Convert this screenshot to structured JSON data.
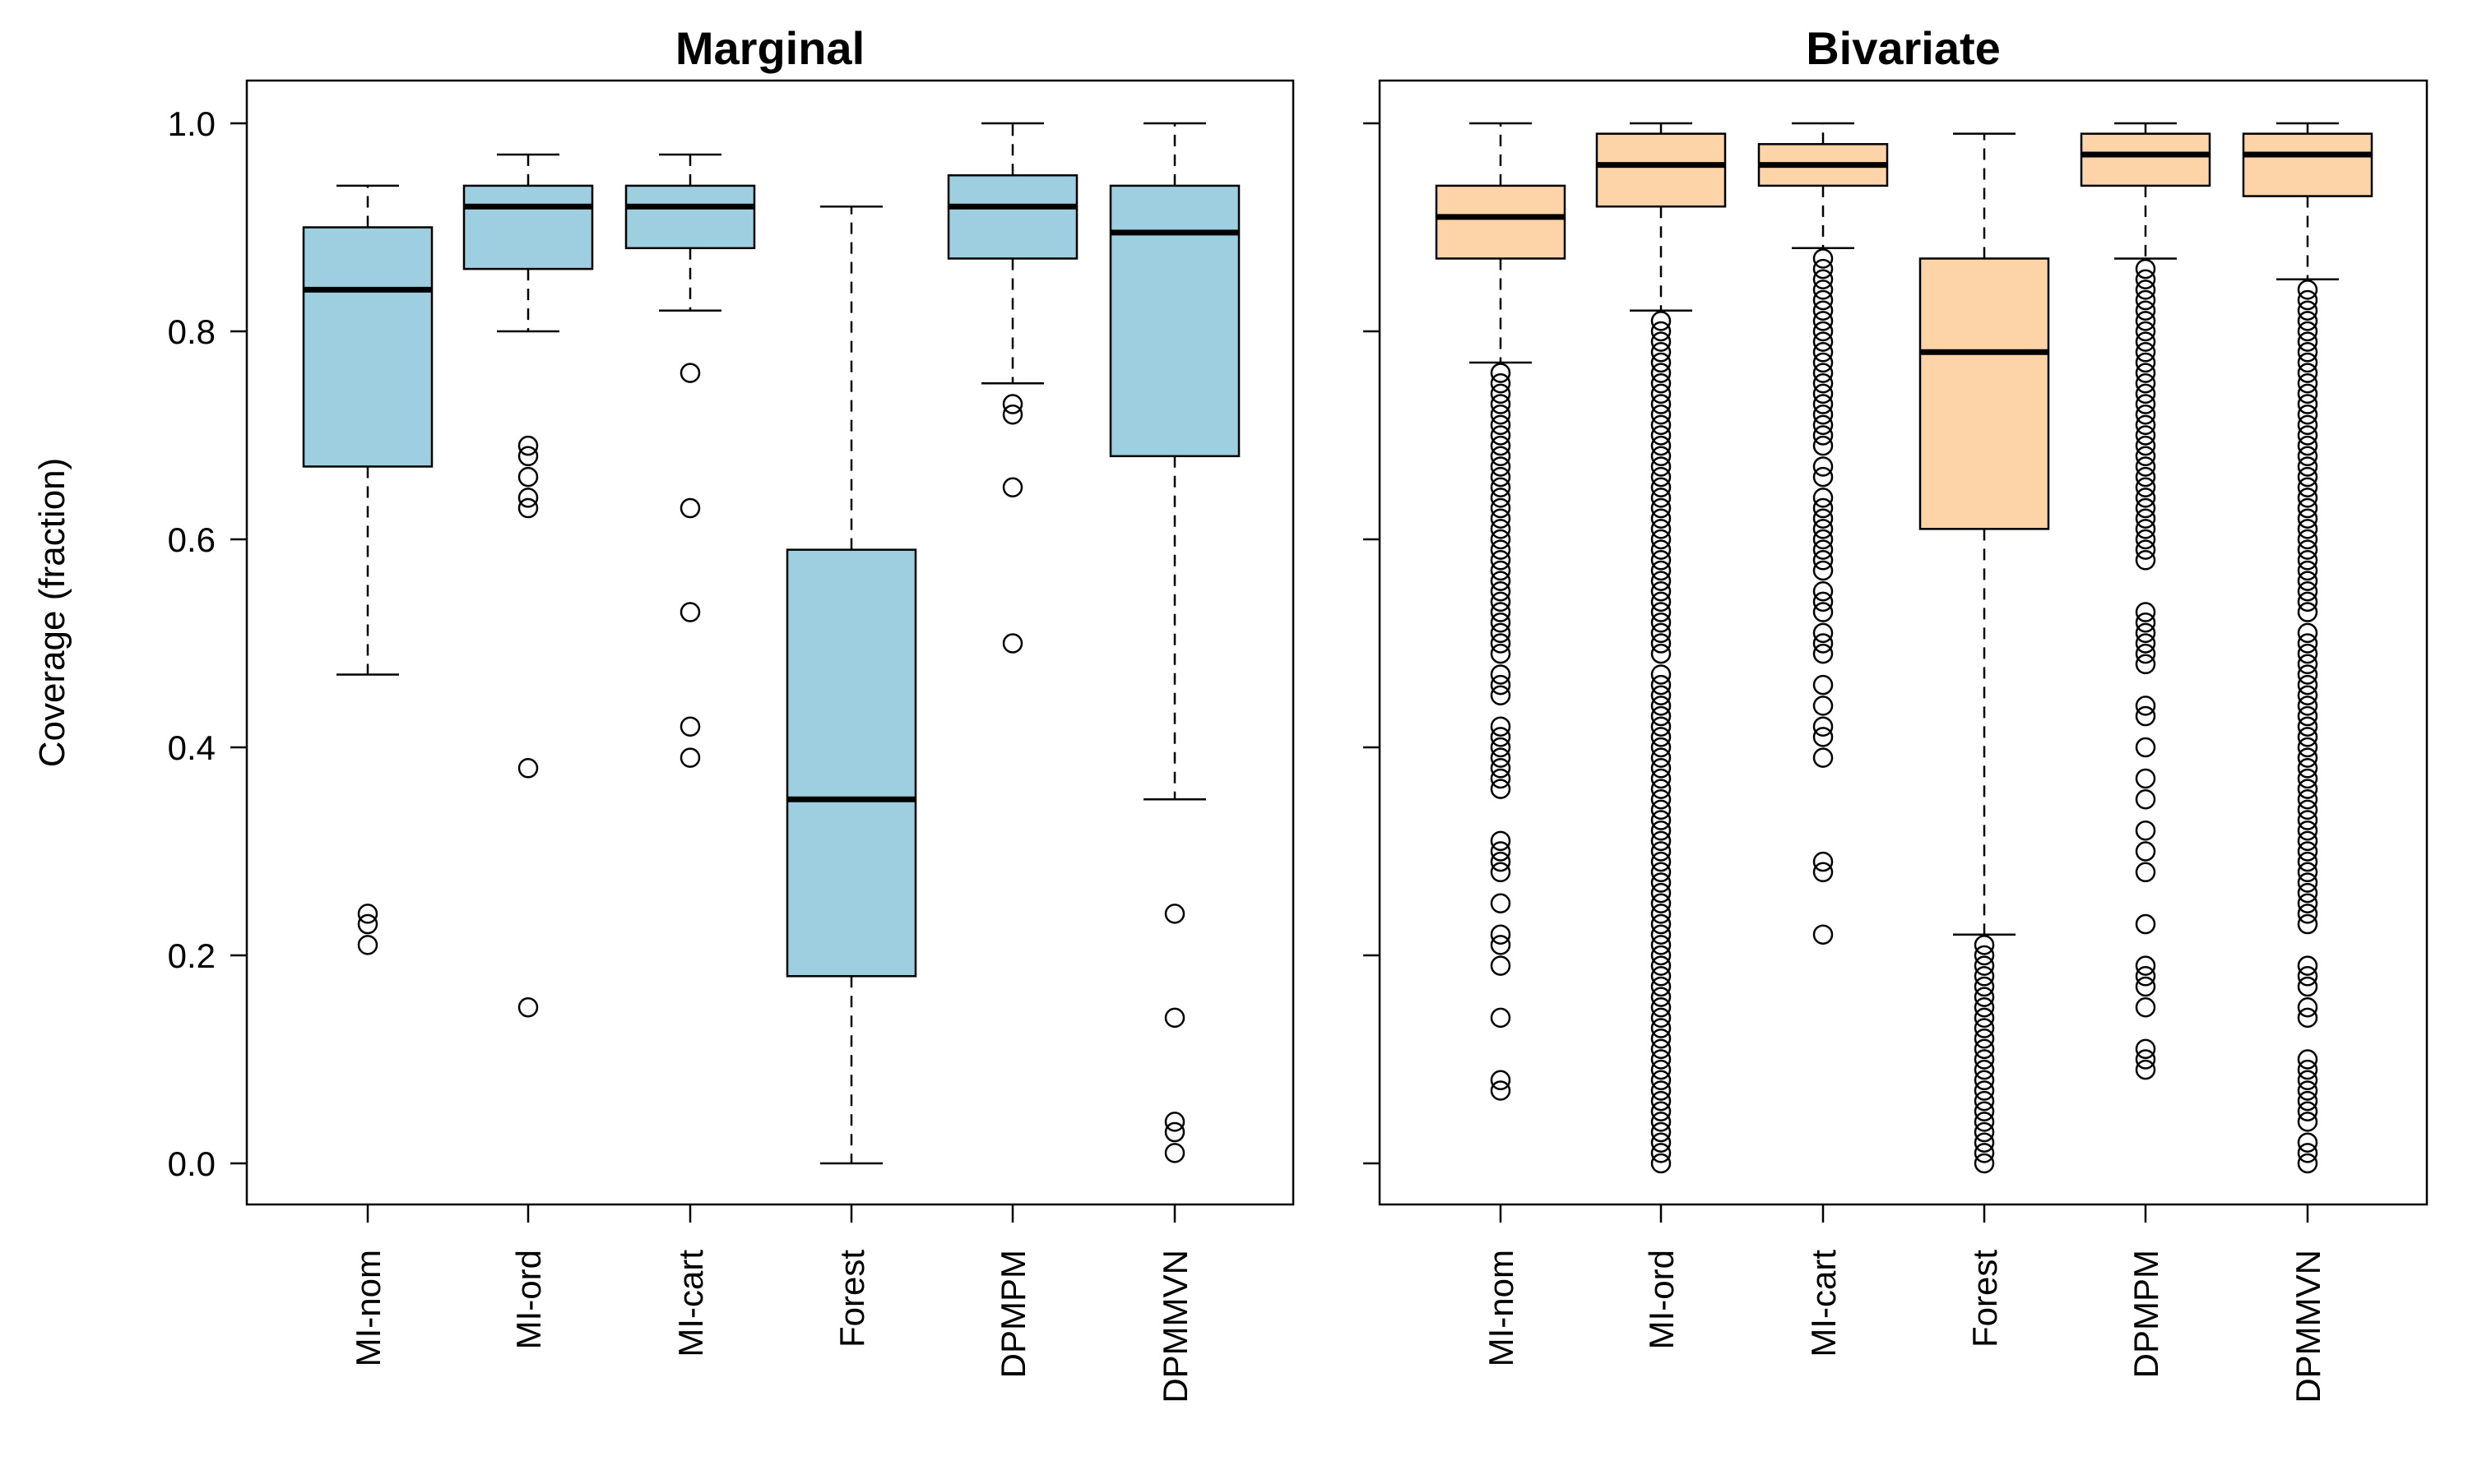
{
  "chart_data": {
    "type": "box",
    "ylabel": "Coverage (fraction)",
    "ylim": [
      0.0,
      1.0
    ],
    "yticks": [
      "0.0",
      "0.2",
      "0.4",
      "0.6",
      "0.8",
      "1.0"
    ],
    "ytick_values": [
      0.0,
      0.2,
      0.4,
      0.6,
      0.8,
      1.0
    ],
    "grid": false,
    "categories": [
      "MI-nom",
      "MI-ord",
      "MI-cart",
      "Forest",
      "DPMPM",
      "DPMMVN"
    ],
    "panels": [
      {
        "title": "Marginal",
        "fill": "#9ecfe0",
        "boxes": [
          {
            "name": "MI-nom",
            "whisker_low": 0.47,
            "q1": 0.67,
            "median": 0.84,
            "q3": 0.9,
            "whisker_high": 0.94,
            "outliers": [
              0.24,
              0.23,
              0.21
            ]
          },
          {
            "name": "MI-ord",
            "whisker_low": 0.8,
            "q1": 0.86,
            "median": 0.92,
            "q3": 0.94,
            "whisker_high": 0.97,
            "outliers": [
              0.69,
              0.68,
              0.66,
              0.64,
              0.63,
              0.38,
              0.15
            ]
          },
          {
            "name": "MI-cart",
            "whisker_low": 0.82,
            "q1": 0.88,
            "median": 0.92,
            "q3": 0.94,
            "whisker_high": 0.97,
            "outliers": [
              0.76,
              0.63,
              0.53,
              0.42,
              0.39
            ]
          },
          {
            "name": "Forest",
            "whisker_low": 0.0,
            "q1": 0.18,
            "median": 0.35,
            "q3": 0.59,
            "whisker_high": 0.92,
            "outliers": []
          },
          {
            "name": "DPMPM",
            "whisker_low": 0.75,
            "q1": 0.87,
            "median": 0.92,
            "q3": 0.95,
            "whisker_high": 1.0,
            "outliers": [
              0.73,
              0.72,
              0.65,
              0.5
            ]
          },
          {
            "name": "DPMMVN",
            "whisker_low": 0.35,
            "q1": 0.68,
            "median": 0.895,
            "q3": 0.94,
            "whisker_high": 1.0,
            "outliers": [
              0.24,
              0.14,
              0.04,
              0.03,
              0.01
            ]
          }
        ]
      },
      {
        "title": "Bivariate",
        "fill": "#fdd3a8",
        "boxes": [
          {
            "name": "MI-nom",
            "whisker_low": 0.77,
            "q1": 0.87,
            "median": 0.91,
            "q3": 0.94,
            "whisker_high": 1.0,
            "outliers": [
              0.76,
              0.75,
              0.74,
              0.73,
              0.72,
              0.71,
              0.7,
              0.69,
              0.68,
              0.67,
              0.66,
              0.65,
              0.64,
              0.63,
              0.62,
              0.61,
              0.6,
              0.59,
              0.58,
              0.57,
              0.56,
              0.55,
              0.54,
              0.53,
              0.52,
              0.51,
              0.5,
              0.49,
              0.47,
              0.46,
              0.45,
              0.42,
              0.41,
              0.4,
              0.39,
              0.38,
              0.37,
              0.36,
              0.31,
              0.3,
              0.29,
              0.28,
              0.25,
              0.22,
              0.21,
              0.19,
              0.14,
              0.08,
              0.07
            ]
          },
          {
            "name": "MI-ord",
            "whisker_low": 0.82,
            "q1": 0.92,
            "median": 0.96,
            "q3": 0.99,
            "whisker_high": 1.0,
            "outliers": [
              0.81,
              0.8,
              0.79,
              0.78,
              0.77,
              0.76,
              0.75,
              0.74,
              0.73,
              0.72,
              0.71,
              0.7,
              0.69,
              0.68,
              0.67,
              0.66,
              0.65,
              0.64,
              0.63,
              0.62,
              0.61,
              0.6,
              0.59,
              0.58,
              0.57,
              0.56,
              0.55,
              0.54,
              0.53,
              0.52,
              0.51,
              0.5,
              0.49,
              0.47,
              0.46,
              0.45,
              0.44,
              0.43,
              0.42,
              0.41,
              0.4,
              0.39,
              0.38,
              0.37,
              0.36,
              0.35,
              0.34,
              0.33,
              0.32,
              0.31,
              0.3,
              0.29,
              0.28,
              0.27,
              0.26,
              0.25,
              0.24,
              0.23,
              0.22,
              0.21,
              0.2,
              0.19,
              0.18,
              0.17,
              0.16,
              0.15,
              0.14,
              0.13,
              0.12,
              0.11,
              0.1,
              0.09,
              0.08,
              0.07,
              0.06,
              0.05,
              0.04,
              0.03,
              0.02,
              0.01,
              0.0
            ]
          },
          {
            "name": "MI-cart",
            "whisker_low": 0.88,
            "q1": 0.94,
            "median": 0.96,
            "q3": 0.98,
            "whisker_high": 1.0,
            "outliers": [
              0.87,
              0.86,
              0.85,
              0.84,
              0.83,
              0.82,
              0.81,
              0.8,
              0.79,
              0.78,
              0.77,
              0.76,
              0.75,
              0.74,
              0.73,
              0.72,
              0.71,
              0.7,
              0.69,
              0.67,
              0.66,
              0.64,
              0.63,
              0.62,
              0.61,
              0.6,
              0.59,
              0.58,
              0.57,
              0.55,
              0.54,
              0.53,
              0.51,
              0.5,
              0.49,
              0.46,
              0.44,
              0.42,
              0.41,
              0.39,
              0.29,
              0.28,
              0.22
            ]
          },
          {
            "name": "Forest",
            "whisker_low": 0.22,
            "q1": 0.61,
            "median": 0.78,
            "q3": 0.87,
            "whisker_high": 0.99,
            "outliers": [
              0.21,
              0.2,
              0.19,
              0.18,
              0.17,
              0.16,
              0.15,
              0.14,
              0.13,
              0.12,
              0.11,
              0.1,
              0.09,
              0.08,
              0.07,
              0.06,
              0.05,
              0.04,
              0.03,
              0.02,
              0.01,
              0.0
            ]
          },
          {
            "name": "DPMPM",
            "whisker_low": 0.87,
            "q1": 0.94,
            "median": 0.97,
            "q3": 0.99,
            "whisker_high": 1.0,
            "outliers": [
              0.86,
              0.85,
              0.84,
              0.83,
              0.82,
              0.81,
              0.8,
              0.79,
              0.78,
              0.77,
              0.76,
              0.75,
              0.74,
              0.73,
              0.72,
              0.71,
              0.7,
              0.69,
              0.68,
              0.67,
              0.66,
              0.65,
              0.64,
              0.63,
              0.62,
              0.61,
              0.6,
              0.59,
              0.58,
              0.53,
              0.52,
              0.51,
              0.5,
              0.49,
              0.48,
              0.44,
              0.43,
              0.4,
              0.37,
              0.35,
              0.32,
              0.3,
              0.28,
              0.23,
              0.19,
              0.18,
              0.17,
              0.15,
              0.11,
              0.1,
              0.09
            ]
          },
          {
            "name": "DPMMVN",
            "whisker_low": 0.85,
            "q1": 0.93,
            "median": 0.97,
            "q3": 0.99,
            "whisker_high": 1.0,
            "outliers": [
              0.84,
              0.83,
              0.82,
              0.81,
              0.8,
              0.79,
              0.78,
              0.77,
              0.76,
              0.75,
              0.74,
              0.73,
              0.72,
              0.71,
              0.7,
              0.69,
              0.68,
              0.67,
              0.66,
              0.65,
              0.64,
              0.63,
              0.62,
              0.61,
              0.6,
              0.59,
              0.58,
              0.57,
              0.56,
              0.55,
              0.54,
              0.53,
              0.51,
              0.5,
              0.49,
              0.48,
              0.47,
              0.46,
              0.45,
              0.44,
              0.43,
              0.42,
              0.41,
              0.4,
              0.39,
              0.38,
              0.37,
              0.36,
              0.35,
              0.34,
              0.33,
              0.32,
              0.31,
              0.3,
              0.29,
              0.28,
              0.27,
              0.26,
              0.25,
              0.24,
              0.23,
              0.19,
              0.18,
              0.17,
              0.15,
              0.14,
              0.1,
              0.09,
              0.08,
              0.07,
              0.06,
              0.05,
              0.04,
              0.02,
              0.01,
              0.0
            ]
          }
        ]
      }
    ]
  }
}
